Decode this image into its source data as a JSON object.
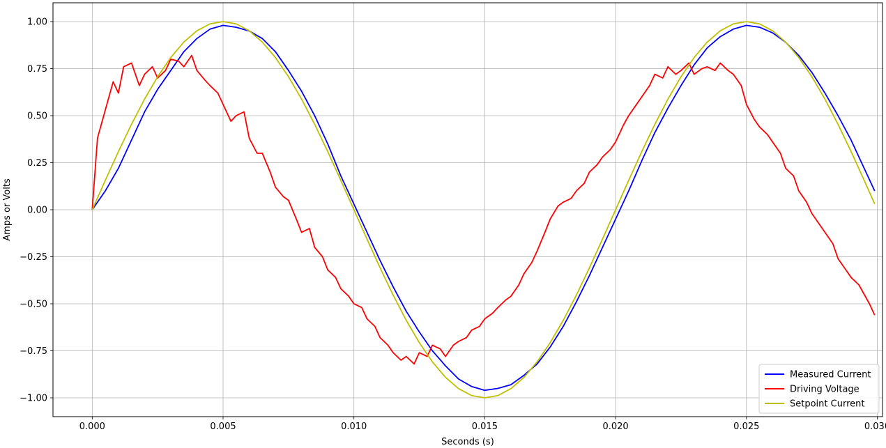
{
  "chart_data": {
    "type": "line",
    "title": "",
    "xlabel": "Seconds (s)",
    "ylabel": "Amps or Volts",
    "xlim": [
      -0.0015,
      0.0302
    ],
    "ylim": [
      -1.1,
      1.1
    ],
    "grid": true,
    "legend_position": "bottom-right",
    "x_ticks": [
      {
        "value": 0.0,
        "label": "0.000"
      },
      {
        "value": 0.005,
        "label": "0.005"
      },
      {
        "value": 0.01,
        "label": "0.010"
      },
      {
        "value": 0.015,
        "label": "0.015"
      },
      {
        "value": 0.02,
        "label": "0.020"
      },
      {
        "value": 0.025,
        "label": "0.025"
      },
      {
        "value": 0.03,
        "label": "0.030"
      }
    ],
    "y_ticks": [
      {
        "value": 1.0,
        "label": "1.00"
      },
      {
        "value": 0.75,
        "label": "0.75"
      },
      {
        "value": 0.5,
        "label": "0.50"
      },
      {
        "value": 0.25,
        "label": "0.25"
      },
      {
        "value": 0.0,
        "label": "0.00"
      },
      {
        "value": -0.25,
        "label": "−0.25"
      },
      {
        "value": -0.5,
        "label": "−0.50"
      },
      {
        "value": -0.75,
        "label": "−0.75"
      },
      {
        "value": -1.0,
        "label": "−1.00"
      }
    ],
    "series": [
      {
        "name": "Measured Current",
        "color": "#0000ff",
        "x": [
          0.0,
          0.0005,
          0.001,
          0.0015,
          0.002,
          0.0025,
          0.003,
          0.0035,
          0.004,
          0.0045,
          0.005,
          0.0055,
          0.006,
          0.0065,
          0.007,
          0.0075,
          0.008,
          0.0085,
          0.009,
          0.0095,
          0.01,
          0.0105,
          0.011,
          0.0115,
          0.012,
          0.0125,
          0.013,
          0.0135,
          0.014,
          0.0145,
          0.015,
          0.0155,
          0.016,
          0.0165,
          0.017,
          0.0175,
          0.018,
          0.0185,
          0.019,
          0.0195,
          0.02,
          0.0205,
          0.021,
          0.0215,
          0.022,
          0.0225,
          0.023,
          0.0235,
          0.024,
          0.0245,
          0.025,
          0.0255,
          0.026,
          0.0265,
          0.027,
          0.0275,
          0.028,
          0.0285,
          0.029,
          0.0295,
          0.0299
        ],
        "y": [
          0.0,
          0.1,
          0.22,
          0.37,
          0.52,
          0.64,
          0.74,
          0.84,
          0.91,
          0.96,
          0.98,
          0.97,
          0.95,
          0.91,
          0.84,
          0.74,
          0.63,
          0.5,
          0.35,
          0.18,
          0.03,
          -0.12,
          -0.27,
          -0.41,
          -0.54,
          -0.65,
          -0.75,
          -0.83,
          -0.9,
          -0.94,
          -0.96,
          -0.95,
          -0.93,
          -0.88,
          -0.82,
          -0.73,
          -0.62,
          -0.49,
          -0.35,
          -0.2,
          -0.05,
          0.1,
          0.26,
          0.41,
          0.54,
          0.66,
          0.77,
          0.86,
          0.92,
          0.96,
          0.98,
          0.97,
          0.94,
          0.89,
          0.82,
          0.73,
          0.62,
          0.5,
          0.37,
          0.22,
          0.1
        ]
      },
      {
        "name": "Driving Voltage",
        "color": "#ff0000",
        "x": [
          0.0,
          0.0002,
          0.0004,
          0.0006,
          0.0008,
          0.001,
          0.0012,
          0.0015,
          0.0018,
          0.002,
          0.0023,
          0.0025,
          0.0028,
          0.003,
          0.0033,
          0.0035,
          0.0038,
          0.004,
          0.0043,
          0.0045,
          0.0048,
          0.005,
          0.0053,
          0.0055,
          0.0058,
          0.006,
          0.0063,
          0.0065,
          0.0068,
          0.007,
          0.0073,
          0.0075,
          0.0078,
          0.008,
          0.0083,
          0.0085,
          0.0088,
          0.009,
          0.0093,
          0.0095,
          0.0098,
          0.01,
          0.0103,
          0.0105,
          0.0108,
          0.011,
          0.0113,
          0.0115,
          0.0118,
          0.012,
          0.0123,
          0.0125,
          0.0128,
          0.013,
          0.0133,
          0.0135,
          0.0138,
          0.014,
          0.0143,
          0.0145,
          0.0148,
          0.015,
          0.0153,
          0.0155,
          0.0158,
          0.016,
          0.0163,
          0.0165,
          0.0168,
          0.017,
          0.0173,
          0.0175,
          0.0178,
          0.018,
          0.0183,
          0.0185,
          0.0188,
          0.019,
          0.0193,
          0.0195,
          0.0198,
          0.02,
          0.0203,
          0.0205,
          0.0208,
          0.021,
          0.0213,
          0.0215,
          0.0218,
          0.022,
          0.0223,
          0.0225,
          0.0228,
          0.023,
          0.0233,
          0.0235,
          0.0238,
          0.024,
          0.0243,
          0.0245,
          0.0248,
          0.025,
          0.0253,
          0.0255,
          0.0258,
          0.026,
          0.0263,
          0.0265,
          0.0268,
          0.027,
          0.0273,
          0.0275,
          0.0278,
          0.028,
          0.0283,
          0.0285,
          0.0288,
          0.029,
          0.0293,
          0.0295,
          0.0297,
          0.0299
        ],
        "y": [
          0.0,
          0.38,
          0.48,
          0.58,
          0.68,
          0.62,
          0.76,
          0.78,
          0.66,
          0.72,
          0.76,
          0.7,
          0.74,
          0.8,
          0.79,
          0.76,
          0.82,
          0.74,
          0.69,
          0.66,
          0.62,
          0.56,
          0.47,
          0.5,
          0.52,
          0.38,
          0.3,
          0.3,
          0.2,
          0.12,
          0.07,
          0.05,
          -0.05,
          -0.12,
          -0.1,
          -0.2,
          -0.25,
          -0.32,
          -0.36,
          -0.42,
          -0.46,
          -0.5,
          -0.52,
          -0.58,
          -0.62,
          -0.68,
          -0.72,
          -0.76,
          -0.8,
          -0.78,
          -0.82,
          -0.76,
          -0.78,
          -0.72,
          -0.74,
          -0.78,
          -0.72,
          -0.7,
          -0.68,
          -0.64,
          -0.62,
          -0.58,
          -0.55,
          -0.52,
          -0.48,
          -0.46,
          -0.4,
          -0.34,
          -0.28,
          -0.22,
          -0.12,
          -0.05,
          0.02,
          0.04,
          0.06,
          0.1,
          0.14,
          0.2,
          0.24,
          0.28,
          0.32,
          0.36,
          0.45,
          0.5,
          0.56,
          0.6,
          0.66,
          0.72,
          0.7,
          0.76,
          0.72,
          0.74,
          0.78,
          0.72,
          0.75,
          0.76,
          0.74,
          0.78,
          0.74,
          0.72,
          0.66,
          0.56,
          0.48,
          0.44,
          0.4,
          0.36,
          0.3,
          0.22,
          0.18,
          0.1,
          0.04,
          -0.02,
          -0.08,
          -0.12,
          -0.18,
          -0.26,
          -0.32,
          -0.36,
          -0.4,
          -0.45,
          -0.5,
          -0.56
        ]
      },
      {
        "name": "Setpoint Current",
        "color": "#bfbf00",
        "function": "sin(2*pi*50*t)",
        "x": [
          0.0,
          0.0005,
          0.001,
          0.0015,
          0.002,
          0.0025,
          0.003,
          0.0035,
          0.004,
          0.0045,
          0.005,
          0.0055,
          0.006,
          0.0065,
          0.007,
          0.0075,
          0.008,
          0.0085,
          0.009,
          0.0095,
          0.01,
          0.0105,
          0.011,
          0.0115,
          0.012,
          0.0125,
          0.013,
          0.0135,
          0.014,
          0.0145,
          0.015,
          0.0155,
          0.016,
          0.0165,
          0.017,
          0.0175,
          0.018,
          0.0185,
          0.019,
          0.0195,
          0.02,
          0.0205,
          0.021,
          0.0215,
          0.022,
          0.0225,
          0.023,
          0.0235,
          0.024,
          0.0245,
          0.025,
          0.0255,
          0.026,
          0.0265,
          0.027,
          0.0275,
          0.028,
          0.0285,
          0.029,
          0.0295,
          0.0299
        ],
        "y": [
          0.0,
          0.156,
          0.309,
          0.454,
          0.588,
          0.707,
          0.809,
          0.891,
          0.951,
          0.988,
          1.0,
          0.988,
          0.951,
          0.891,
          0.809,
          0.707,
          0.588,
          0.454,
          0.309,
          0.156,
          0.0,
          -0.156,
          -0.309,
          -0.454,
          -0.588,
          -0.707,
          -0.809,
          -0.891,
          -0.951,
          -0.988,
          -1.0,
          -0.988,
          -0.951,
          -0.891,
          -0.809,
          -0.707,
          -0.588,
          -0.454,
          -0.309,
          -0.156,
          0.0,
          0.156,
          0.309,
          0.454,
          0.588,
          0.707,
          0.809,
          0.891,
          0.951,
          0.988,
          1.0,
          0.988,
          0.951,
          0.891,
          0.809,
          0.707,
          0.588,
          0.454,
          0.309,
          0.156,
          0.031
        ]
      }
    ]
  }
}
